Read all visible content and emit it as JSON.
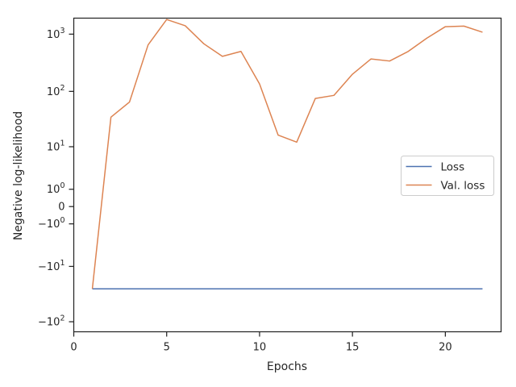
{
  "chart_data": {
    "type": "line",
    "xlabel": "Epochs",
    "ylabel": "Negative log-likelihood",
    "yscale": "symlog",
    "xlim": [
      0,
      23
    ],
    "ylim": [
      -150,
      1900
    ],
    "grid": false,
    "legend_position": "center-right",
    "x_ticks": [
      0,
      5,
      10,
      15,
      20
    ],
    "x_tick_labels": [
      "0",
      "5",
      "10",
      "15",
      "20"
    ],
    "y_ticks": [
      {
        "value": 1000,
        "base": "10",
        "exp": "3"
      },
      {
        "value": 100,
        "base": "10",
        "exp": "2"
      },
      {
        "value": 10,
        "base": "10",
        "exp": "1"
      },
      {
        "value": 1,
        "base": "10",
        "exp": "0"
      },
      {
        "value": 0,
        "base": "0",
        "exp": ""
      },
      {
        "value": -1,
        "base": "−10",
        "exp": "0"
      },
      {
        "value": -10,
        "base": "−10",
        "exp": "1"
      },
      {
        "value": -100,
        "base": "−10",
        "exp": "2"
      }
    ],
    "x": [
      1,
      2,
      3,
      4,
      5,
      6,
      7,
      8,
      9,
      10,
      11,
      12,
      13,
      14,
      15,
      16,
      17,
      18,
      19,
      20,
      21,
      22
    ],
    "series": [
      {
        "name": "Loss",
        "color": "#4c72b0",
        "values": [
          -26,
          -26,
          -26,
          -26,
          -26,
          -26,
          -26,
          -26,
          -26,
          -26,
          -26,
          -26,
          -26,
          -26,
          -26,
          -26,
          -26,
          -26,
          -26,
          -26,
          -26,
          -26
        ]
      },
      {
        "name": "Val. loss",
        "color": "#dd8452",
        "values": [
          -26,
          35,
          65,
          650,
          1800,
          1400,
          680,
          410,
          500,
          135,
          16.5,
          12.2,
          75,
          85,
          200,
          370,
          340,
          500,
          850,
          1350,
          1380,
          1080
        ]
      }
    ]
  }
}
